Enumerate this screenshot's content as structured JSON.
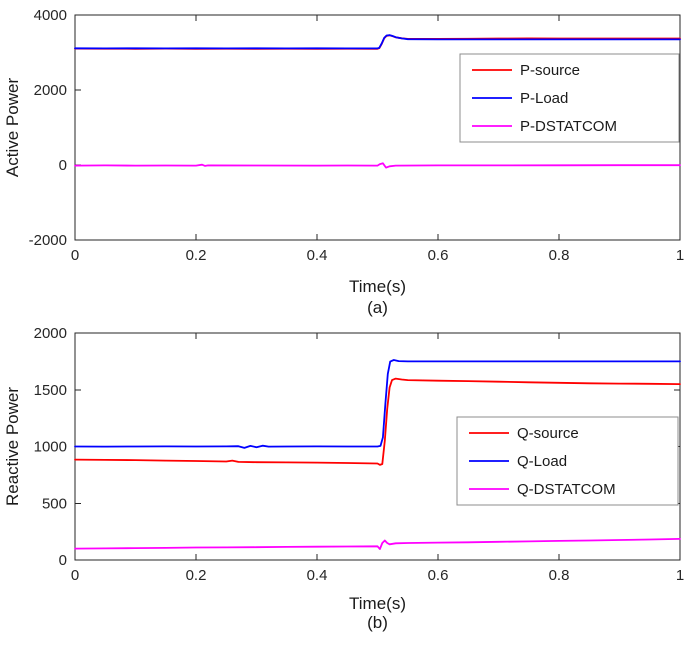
{
  "figure": {
    "background": "#ffffff",
    "axis_color": "#262626",
    "label_color": "#1a1a1a",
    "legend_border_color": "#8c8c8c"
  },
  "chart_data": [
    {
      "id": "a",
      "type": "line",
      "xlabel": "Time(s)",
      "ylabel": "Active Power",
      "caption": "(a)",
      "xlim": [
        0,
        1
      ],
      "ylim": [
        -2000,
        4000
      ],
      "xticks": [
        "0",
        "0.2",
        "0.4",
        "0.6",
        "0.8",
        "1"
      ],
      "xtick_values": [
        0,
        0.2,
        0.4,
        0.6,
        0.8,
        1
      ],
      "yticks": [
        "-2000",
        "0",
        "2000",
        "4000"
      ],
      "ytick_values": [
        -2000,
        0,
        2000,
        4000
      ],
      "grid": false,
      "legend": {
        "position": "inside-right",
        "entries": [
          "P-source",
          "P-Load",
          "P-DSTATCOM"
        ]
      },
      "series": [
        {
          "name": "P-source",
          "color": "#ff0000",
          "points": [
            [
              0,
              3105
            ],
            [
              0.05,
              3102
            ],
            [
              0.1,
              3100
            ],
            [
              0.15,
              3103
            ],
            [
              0.2,
              3100
            ],
            [
              0.25,
              3102
            ],
            [
              0.3,
              3100
            ],
            [
              0.35,
              3101
            ],
            [
              0.4,
              3100
            ],
            [
              0.45,
              3102
            ],
            [
              0.5,
              3100
            ],
            [
              0.503,
              3115
            ],
            [
              0.507,
              3230
            ],
            [
              0.511,
              3380
            ],
            [
              0.515,
              3445
            ],
            [
              0.52,
              3460
            ],
            [
              0.525,
              3435
            ],
            [
              0.53,
              3405
            ],
            [
              0.54,
              3378
            ],
            [
              0.55,
              3362
            ],
            [
              0.6,
              3363
            ],
            [
              0.65,
              3366
            ],
            [
              0.7,
              3372
            ],
            [
              0.75,
              3376
            ],
            [
              0.8,
              3373
            ],
            [
              0.85,
              3374
            ],
            [
              0.9,
              3373
            ],
            [
              0.95,
              3372
            ],
            [
              1,
              3373
            ]
          ]
        },
        {
          "name": "P-Load",
          "color": "#0000ff",
          "points": [
            [
              0,
              3112
            ],
            [
              0.05,
              3110
            ],
            [
              0.1,
              3111
            ],
            [
              0.15,
              3110
            ],
            [
              0.2,
              3112
            ],
            [
              0.25,
              3110
            ],
            [
              0.3,
              3111
            ],
            [
              0.35,
              3110
            ],
            [
              0.4,
              3112
            ],
            [
              0.45,
              3110
            ],
            [
              0.5,
              3110
            ],
            [
              0.503,
              3125
            ],
            [
              0.507,
              3240
            ],
            [
              0.511,
              3390
            ],
            [
              0.515,
              3452
            ],
            [
              0.52,
              3465
            ],
            [
              0.525,
              3440
            ],
            [
              0.53,
              3408
            ],
            [
              0.54,
              3375
            ],
            [
              0.55,
              3355
            ],
            [
              0.6,
              3350
            ],
            [
              0.7,
              3350
            ],
            [
              0.8,
              3350
            ],
            [
              0.9,
              3350
            ],
            [
              1,
              3350
            ]
          ]
        },
        {
          "name": "P-DSTATCOM",
          "color": "#ff00ff",
          "points": [
            [
              0,
              -15
            ],
            [
              0.05,
              -12
            ],
            [
              0.1,
              -15
            ],
            [
              0.15,
              -13
            ],
            [
              0.2,
              -16
            ],
            [
              0.21,
              8
            ],
            [
              0.215,
              -25
            ],
            [
              0.22,
              -12
            ],
            [
              0.3,
              -14
            ],
            [
              0.4,
              -15
            ],
            [
              0.45,
              -14
            ],
            [
              0.5,
              -15
            ],
            [
              0.504,
              25
            ],
            [
              0.509,
              45
            ],
            [
              0.514,
              -70
            ],
            [
              0.52,
              -35
            ],
            [
              0.53,
              -15
            ],
            [
              0.6,
              -12
            ],
            [
              0.7,
              -10
            ],
            [
              0.8,
              -8
            ],
            [
              0.9,
              -6
            ],
            [
              1,
              -5
            ]
          ]
        }
      ]
    },
    {
      "id": "b",
      "type": "line",
      "xlabel": "Time(s)",
      "ylabel": "Reactive Power",
      "caption": "(b)",
      "xlim": [
        0,
        1
      ],
      "ylim": [
        0,
        2000
      ],
      "xticks": [
        "0",
        "0.2",
        "0.4",
        "0.6",
        "0.8",
        "1"
      ],
      "xtick_values": [
        0,
        0.2,
        0.4,
        0.6,
        0.8,
        1
      ],
      "yticks": [
        "0",
        "500",
        "1000",
        "1500",
        "2000"
      ],
      "ytick_values": [
        0,
        500,
        1000,
        1500,
        2000
      ],
      "grid": false,
      "legend": {
        "position": "inside-right",
        "entries": [
          "Q-source",
          "Q-Load",
          "Q-DSTATCOM"
        ]
      },
      "series": [
        {
          "name": "Q-source",
          "color": "#ff0000",
          "points": [
            [
              0,
              885
            ],
            [
              0.05,
              882
            ],
            [
              0.1,
              880
            ],
            [
              0.15,
              876
            ],
            [
              0.2,
              872
            ],
            [
              0.25,
              868
            ],
            [
              0.26,
              876
            ],
            [
              0.27,
              864
            ],
            [
              0.3,
              862
            ],
            [
              0.35,
              860
            ],
            [
              0.4,
              858
            ],
            [
              0.45,
              855
            ],
            [
              0.5,
              850
            ],
            [
              0.504,
              838
            ],
            [
              0.508,
              846
            ],
            [
              0.512,
              1050
            ],
            [
              0.516,
              1330
            ],
            [
              0.52,
              1520
            ],
            [
              0.524,
              1585
            ],
            [
              0.53,
              1598
            ],
            [
              0.54,
              1590
            ],
            [
              0.55,
              1585
            ],
            [
              0.6,
              1580
            ],
            [
              0.65,
              1576
            ],
            [
              0.7,
              1571
            ],
            [
              0.75,
              1566
            ],
            [
              0.8,
              1561
            ],
            [
              0.85,
              1557
            ],
            [
              0.9,
              1554
            ],
            [
              0.95,
              1552
            ],
            [
              1,
              1550
            ]
          ]
        },
        {
          "name": "Q-Load",
          "color": "#0000ff",
          "points": [
            [
              0,
              1000
            ],
            [
              0.05,
              999
            ],
            [
              0.1,
              1000
            ],
            [
              0.15,
              1001
            ],
            [
              0.2,
              1000
            ],
            [
              0.25,
              1001
            ],
            [
              0.27,
              1003
            ],
            [
              0.28,
              988
            ],
            [
              0.29,
              1005
            ],
            [
              0.3,
              994
            ],
            [
              0.31,
              1007
            ],
            [
              0.32,
              999
            ],
            [
              0.35,
              1000
            ],
            [
              0.4,
              1001
            ],
            [
              0.45,
              1000
            ],
            [
              0.5,
              1000
            ],
            [
              0.505,
              1005
            ],
            [
              0.509,
              1080
            ],
            [
              0.513,
              1380
            ],
            [
              0.517,
              1640
            ],
            [
              0.521,
              1748
            ],
            [
              0.527,
              1762
            ],
            [
              0.535,
              1752
            ],
            [
              0.55,
              1750
            ],
            [
              0.6,
              1750
            ],
            [
              0.7,
              1750
            ],
            [
              0.8,
              1750
            ],
            [
              0.9,
              1750
            ],
            [
              1,
              1750
            ]
          ]
        },
        {
          "name": "Q-DSTATCOM",
          "color": "#ff00ff",
          "points": [
            [
              0,
              100
            ],
            [
              0.05,
              102
            ],
            [
              0.1,
              105
            ],
            [
              0.15,
              107
            ],
            [
              0.2,
              110
            ],
            [
              0.25,
              111
            ],
            [
              0.3,
              113
            ],
            [
              0.35,
              115
            ],
            [
              0.4,
              117
            ],
            [
              0.45,
              119
            ],
            [
              0.5,
              121
            ],
            [
              0.504,
              96
            ],
            [
              0.508,
              150
            ],
            [
              0.512,
              172
            ],
            [
              0.516,
              150
            ],
            [
              0.52,
              138
            ],
            [
              0.53,
              147
            ],
            [
              0.55,
              150
            ],
            [
              0.6,
              153
            ],
            [
              0.65,
              156
            ],
            [
              0.7,
              160
            ],
            [
              0.75,
              164
            ],
            [
              0.8,
              168
            ],
            [
              0.85,
              172
            ],
            [
              0.9,
              176
            ],
            [
              0.95,
              181
            ],
            [
              1,
              186
            ]
          ]
        }
      ]
    }
  ]
}
